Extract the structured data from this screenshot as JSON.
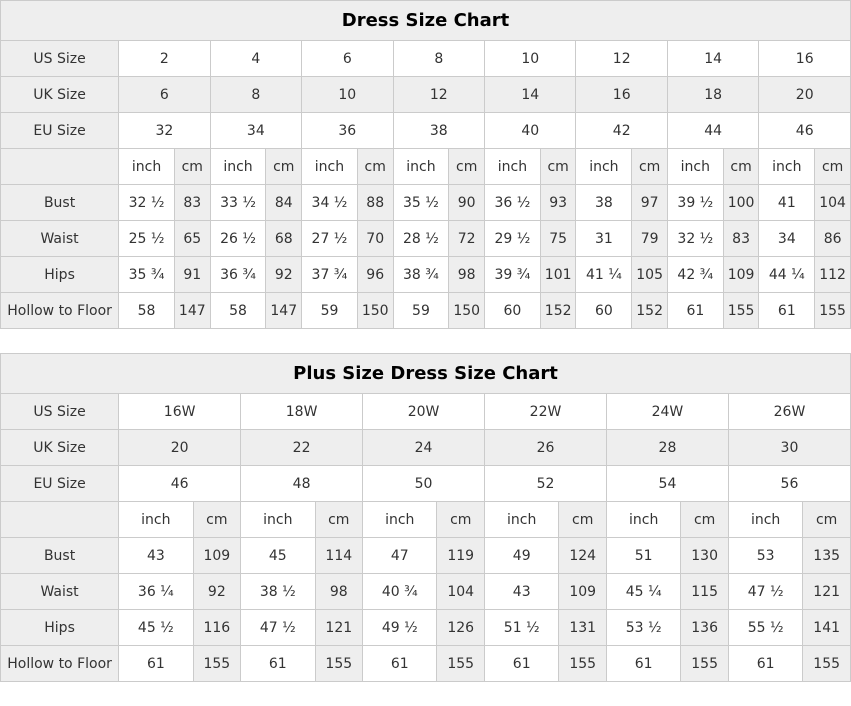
{
  "colors": {
    "shaded_cell_bg": "#eeeeee",
    "border": "#cbcbcb",
    "text": "#333333",
    "title_text": "#000000"
  },
  "tables": [
    {
      "title": "Dress Size Chart",
      "unit_labels": [
        "inch",
        "cm"
      ],
      "size_rows": [
        {
          "label": "US Size",
          "shaded": false,
          "values": [
            "2",
            "4",
            "6",
            "8",
            "10",
            "12",
            "14",
            "16"
          ]
        },
        {
          "label": "UK Size",
          "shaded": true,
          "values": [
            "6",
            "8",
            "10",
            "12",
            "14",
            "16",
            "18",
            "20"
          ]
        },
        {
          "label": "EU Size",
          "shaded": false,
          "values": [
            "32",
            "34",
            "36",
            "38",
            "40",
            "42",
            "44",
            "46"
          ]
        }
      ],
      "measure_rows": [
        {
          "label": "Bust",
          "pairs": [
            [
              "32 ½",
              "83"
            ],
            [
              "33 ½",
              "84"
            ],
            [
              "34 ½",
              "88"
            ],
            [
              "35 ½",
              "90"
            ],
            [
              "36 ½",
              "93"
            ],
            [
              "38",
              "97"
            ],
            [
              "39 ½",
              "100"
            ],
            [
              "41",
              "104"
            ]
          ]
        },
        {
          "label": "Waist",
          "pairs": [
            [
              "25 ½",
              "65"
            ],
            [
              "26 ½",
              "68"
            ],
            [
              "27 ½",
              "70"
            ],
            [
              "28 ½",
              "72"
            ],
            [
              "29 ½",
              "75"
            ],
            [
              "31",
              "79"
            ],
            [
              "32 ½",
              "83"
            ],
            [
              "34",
              "86"
            ]
          ]
        },
        {
          "label": "Hips",
          "pairs": [
            [
              "35 ¾",
              "91"
            ],
            [
              "36 ¾",
              "92"
            ],
            [
              "37 ¾",
              "96"
            ],
            [
              "38 ¾",
              "98"
            ],
            [
              "39 ¾",
              "101"
            ],
            [
              "41 ¼",
              "105"
            ],
            [
              "42 ¾",
              "109"
            ],
            [
              "44 ¼",
              "112"
            ]
          ]
        },
        {
          "label": "Hollow to Floor",
          "pairs": [
            [
              "58",
              "147"
            ],
            [
              "58",
              "147"
            ],
            [
              "59",
              "150"
            ],
            [
              "59",
              "150"
            ],
            [
              "60",
              "152"
            ],
            [
              "60",
              "152"
            ],
            [
              "61",
              "155"
            ],
            [
              "61",
              "155"
            ]
          ]
        }
      ]
    },
    {
      "title": "Plus Size Dress Size Chart",
      "unit_labels": [
        "inch",
        "cm"
      ],
      "size_rows": [
        {
          "label": "US Size",
          "shaded": false,
          "values": [
            "16W",
            "18W",
            "20W",
            "22W",
            "24W",
            "26W"
          ]
        },
        {
          "label": "UK Size",
          "shaded": true,
          "values": [
            "20",
            "22",
            "24",
            "26",
            "28",
            "30"
          ]
        },
        {
          "label": "EU Size",
          "shaded": false,
          "values": [
            "46",
            "48",
            "50",
            "52",
            "54",
            "56"
          ]
        }
      ],
      "measure_rows": [
        {
          "label": "Bust",
          "pairs": [
            [
              "43",
              "109"
            ],
            [
              "45",
              "114"
            ],
            [
              "47",
              "119"
            ],
            [
              "49",
              "124"
            ],
            [
              "51",
              "130"
            ],
            [
              "53",
              "135"
            ]
          ]
        },
        {
          "label": "Waist",
          "pairs": [
            [
              "36 ¼",
              "92"
            ],
            [
              "38 ½",
              "98"
            ],
            [
              "40 ¾",
              "104"
            ],
            [
              "43",
              "109"
            ],
            [
              "45 ¼",
              "115"
            ],
            [
              "47 ½",
              "121"
            ]
          ]
        },
        {
          "label": "Hips",
          "pairs": [
            [
              "45 ½",
              "116"
            ],
            [
              "47 ½",
              "121"
            ],
            [
              "49 ½",
              "126"
            ],
            [
              "51 ½",
              "131"
            ],
            [
              "53 ½",
              "136"
            ],
            [
              "55 ½",
              "141"
            ]
          ]
        },
        {
          "label": "Hollow to Floor",
          "pairs": [
            [
              "61",
              "155"
            ],
            [
              "61",
              "155"
            ],
            [
              "61",
              "155"
            ],
            [
              "61",
              "155"
            ],
            [
              "61",
              "155"
            ],
            [
              "61",
              "155"
            ]
          ]
        }
      ]
    }
  ]
}
